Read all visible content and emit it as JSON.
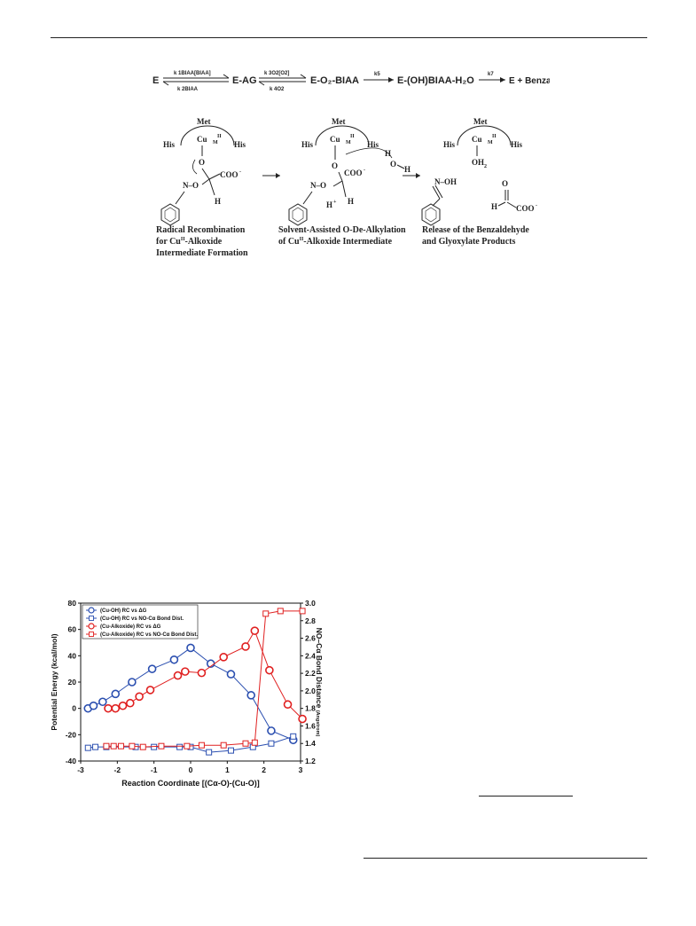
{
  "kinetic_scheme": {
    "E": "E",
    "k1_top": "k 1BIAA[BIAA]",
    "k1_bottom": "k 2BIAA",
    "EAG": "E-AG",
    "k2_top": "k 3O2[O2]",
    "k2_bottom": "k 4O2",
    "EO2": "E-O₂-BIAA",
    "k5": "k5",
    "EOH": "E-(OH)BIAA-H₂O",
    "k7": "k7",
    "product": "E + Benzaldoxime"
  },
  "mechanism": {
    "panels": [
      {
        "met": "Met",
        "his_left": "His",
        "his_right": "His",
        "cu": "Cu",
        "caption_l1": "Radical Recombination",
        "caption_l2": "for Cu",
        "caption_l2_sup": "II",
        "caption_l2_rest": "-Alkoxide",
        "caption_l3": "Intermediate Formation"
      },
      {
        "met": "Met",
        "his_left": "His",
        "his_right": "His",
        "cu": "Cu",
        "caption_l1": "Solvent-Assisted O-De-Alkylation",
        "caption_l2": "of Cu",
        "caption_l2_sup": "II",
        "caption_l2_rest": "-Alkoxide Intermediate"
      },
      {
        "met": "Met",
        "his_left": "His",
        "his_right": "His",
        "cu": "Cu",
        "caption_l1": "Release of the Benzaldehyde",
        "caption_l2": "and Glyoxylate Products"
      }
    ]
  },
  "chart_data": {
    "type": "line",
    "xlabel": "Reaction Coordinate [(Cα-O)-(Cu-O)]",
    "ylabel_left": "Potential Energy (kcal/mol)",
    "ylabel_right_main": "NO–Cα Bond Distance",
    "ylabel_right_unit": "(Angstrom)",
    "xlim": [
      -3,
      3
    ],
    "ylim_left": [
      -40,
      80
    ],
    "ylim_right": [
      1.2,
      3.0
    ],
    "x_ticks": [
      "-3",
      "-2",
      "-1",
      "0",
      "1",
      "2",
      "3"
    ],
    "y_left_ticks": [
      "-40",
      "-20",
      "0",
      "20",
      "40",
      "60",
      "80"
    ],
    "y_right_ticks": [
      "1.2",
      "1.4",
      "1.6",
      "1.8",
      "2.0",
      "2.2",
      "2.4",
      "2.6",
      "2.8",
      "3.0"
    ],
    "legend_position": "top-left",
    "series": [
      {
        "name": "(Cu-OH) RC vs ΔG",
        "axis": "left",
        "marker": "circle",
        "color": "#2b4fb0",
        "x": [
          -2.8,
          -2.65,
          -2.4,
          -2.05,
          -1.6,
          -1.05,
          -0.45,
          0.0,
          0.55,
          1.1,
          1.65,
          2.2,
          2.8
        ],
        "y": [
          0,
          2,
          5,
          11,
          20,
          30,
          37,
          46,
          34,
          26,
          10,
          -17,
          -24
        ]
      },
      {
        "name": "(Cu-OH) RC vs NO-Cα Bond Dist.",
        "axis": "right",
        "marker": "square",
        "color": "#2b4fb0",
        "x": [
          -2.8,
          -2.6,
          -2.3,
          -1.5,
          -1.0,
          -0.3,
          0.0,
          0.5,
          1.1,
          1.7,
          2.2,
          2.8
        ],
        "y": [
          1.35,
          1.36,
          1.36,
          1.36,
          1.36,
          1.36,
          1.36,
          1.3,
          1.32,
          1.36,
          1.4,
          1.48
        ]
      },
      {
        "name": "(Cu-Alkoxide) RC vs ΔG",
        "axis": "left",
        "marker": "circle",
        "color": "#e02020",
        "x": [
          -2.25,
          -2.05,
          -1.85,
          -1.65,
          -1.4,
          -1.1,
          -0.35,
          -0.15,
          0.3,
          0.9,
          1.5,
          1.75,
          2.15,
          2.65,
          3.05
        ],
        "y": [
          0,
          0,
          2,
          4,
          9,
          14,
          25,
          28,
          27,
          39,
          47,
          59,
          29,
          3,
          -8
        ]
      },
      {
        "name": "(Cu-Alkoxide) RC vs NO-Cα Bond Dist.",
        "axis": "right",
        "marker": "square",
        "color": "#e02020",
        "x": [
          -2.3,
          -2.1,
          -1.9,
          -1.6,
          -1.3,
          -0.8,
          -0.1,
          0.3,
          0.9,
          1.5,
          1.75,
          2.05,
          2.45,
          3.05
        ],
        "y": [
          1.37,
          1.37,
          1.37,
          1.37,
          1.36,
          1.37,
          1.37,
          1.38,
          1.38,
          1.4,
          1.41,
          2.88,
          2.91,
          2.91
        ]
      }
    ]
  }
}
